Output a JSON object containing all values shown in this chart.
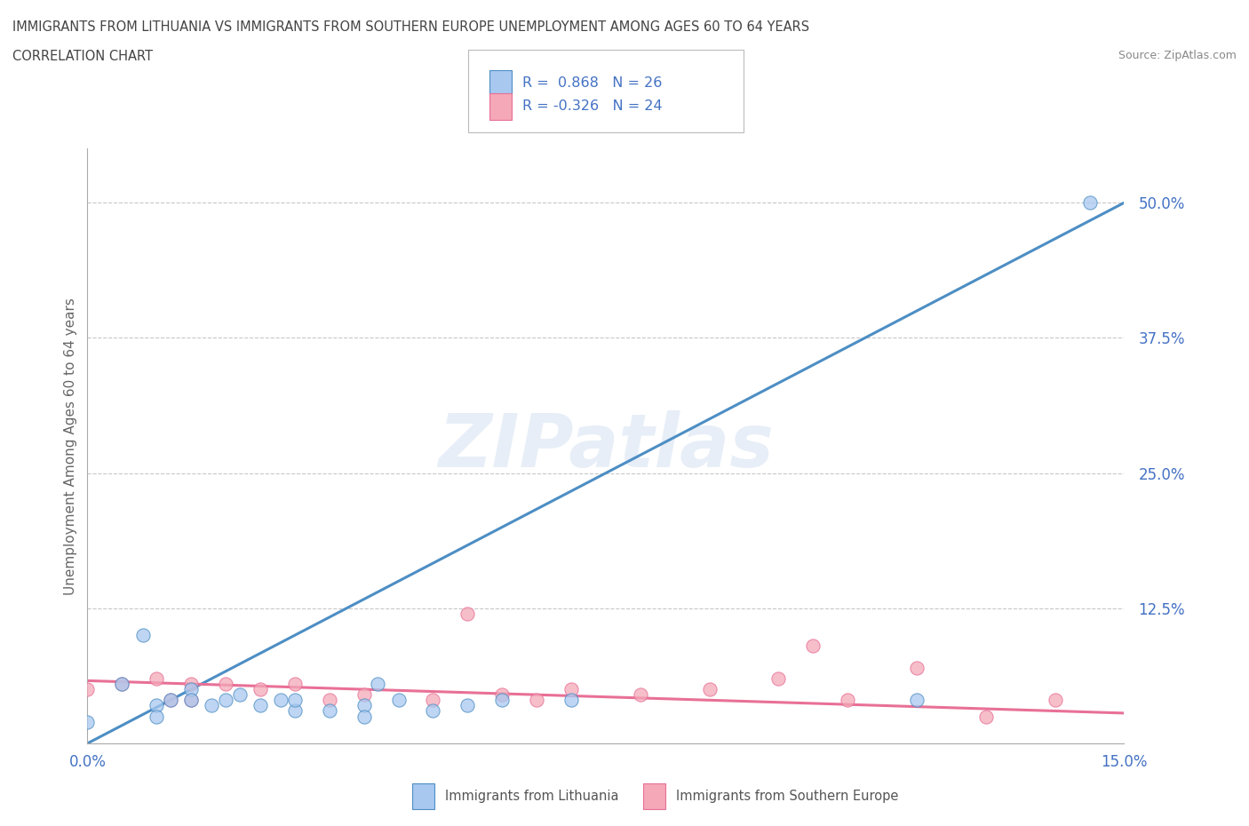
{
  "title_line1": "IMMIGRANTS FROM LITHUANIA VS IMMIGRANTS FROM SOUTHERN EUROPE UNEMPLOYMENT AMONG AGES 60 TO 64 YEARS",
  "title_line2": "CORRELATION CHART",
  "source_text": "Source: ZipAtlas.com",
  "ylabel": "Unemployment Among Ages 60 to 64 years",
  "xlim": [
    0.0,
    0.15
  ],
  "ylim": [
    0.0,
    0.55
  ],
  "xtick_labels": [
    "0.0%",
    "15.0%"
  ],
  "ytick_labels": [
    "12.5%",
    "25.0%",
    "37.5%",
    "50.0%"
  ],
  "ytick_values": [
    0.125,
    0.25,
    0.375,
    0.5
  ],
  "r_lithuania": 0.868,
  "n_lithuania": 26,
  "r_southern": -0.326,
  "n_southern": 24,
  "legend_label_1": "Immigrants from Lithuania",
  "legend_label_2": "Immigrants from Southern Europe",
  "watermark": "ZIPatlas",
  "color_lithuania": "#a8c8f0",
  "color_southern": "#f4a8b8",
  "color_line_lithuania": "#4d8ec4",
  "color_line_southern": "#e87096",
  "color_text_blue": "#4472c4",
  "lithuania_scatter_x": [
    0.0,
    0.005,
    0.008,
    0.01,
    0.01,
    0.012,
    0.015,
    0.015,
    0.018,
    0.02,
    0.022,
    0.025,
    0.028,
    0.03,
    0.03,
    0.035,
    0.04,
    0.04,
    0.042,
    0.045,
    0.05,
    0.055,
    0.06,
    0.07,
    0.12,
    0.145
  ],
  "lithuania_scatter_y": [
    0.02,
    0.055,
    0.1,
    0.035,
    0.025,
    0.04,
    0.05,
    0.04,
    0.035,
    0.04,
    0.045,
    0.035,
    0.04,
    0.03,
    0.04,
    0.03,
    0.035,
    0.025,
    0.055,
    0.04,
    0.03,
    0.035,
    0.04,
    0.04,
    0.04,
    0.5
  ],
  "southern_scatter_x": [
    0.0,
    0.005,
    0.01,
    0.012,
    0.015,
    0.015,
    0.02,
    0.025,
    0.03,
    0.035,
    0.04,
    0.05,
    0.055,
    0.06,
    0.065,
    0.07,
    0.08,
    0.09,
    0.1,
    0.105,
    0.11,
    0.12,
    0.13,
    0.14
  ],
  "southern_scatter_y": [
    0.05,
    0.055,
    0.06,
    0.04,
    0.055,
    0.04,
    0.055,
    0.05,
    0.055,
    0.04,
    0.045,
    0.04,
    0.12,
    0.045,
    0.04,
    0.05,
    0.045,
    0.05,
    0.06,
    0.09,
    0.04,
    0.07,
    0.025,
    0.04
  ],
  "line_lith_x0": 0.0,
  "line_lith_y0": 0.0,
  "line_lith_x1": 0.15,
  "line_lith_y1": 0.5,
  "line_south_x0": 0.0,
  "line_south_y0": 0.058,
  "line_south_x1": 0.15,
  "line_south_y1": 0.028,
  "background_color": "#ffffff",
  "grid_color": "#c8c8c8"
}
